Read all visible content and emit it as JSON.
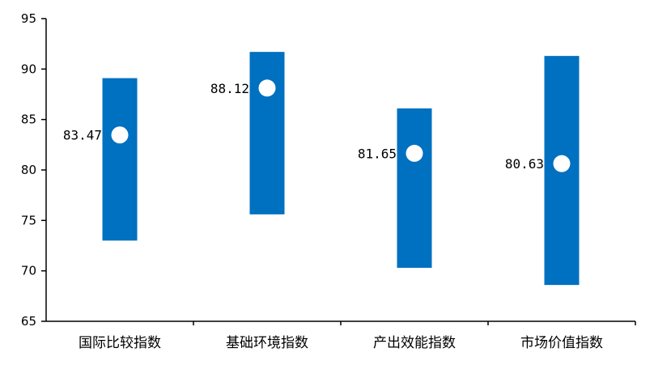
{
  "chart_data": {
    "type": "range-dot",
    "title": "",
    "xlabel": "",
    "ylabel": "",
    "ylim": [
      65,
      95
    ],
    "yticks": [
      65,
      70,
      75,
      80,
      85,
      90,
      95
    ],
    "grid": false,
    "legend": "none",
    "categories": [
      "国际比较指数",
      "基础环境指数",
      "产出效能指数",
      "市场价值指数"
    ],
    "range_low": [
      73.0,
      75.6,
      70.3,
      68.6
    ],
    "range_high": [
      89.1,
      91.7,
      86.1,
      91.3
    ],
    "values": [
      83.47,
      88.12,
      81.65,
      80.63
    ],
    "value_labels": [
      "83.47",
      "88.12",
      "81.65",
      "80.63"
    ],
    "bar_color": "#0070C0",
    "dot_color": "#FFFFFF"
  }
}
